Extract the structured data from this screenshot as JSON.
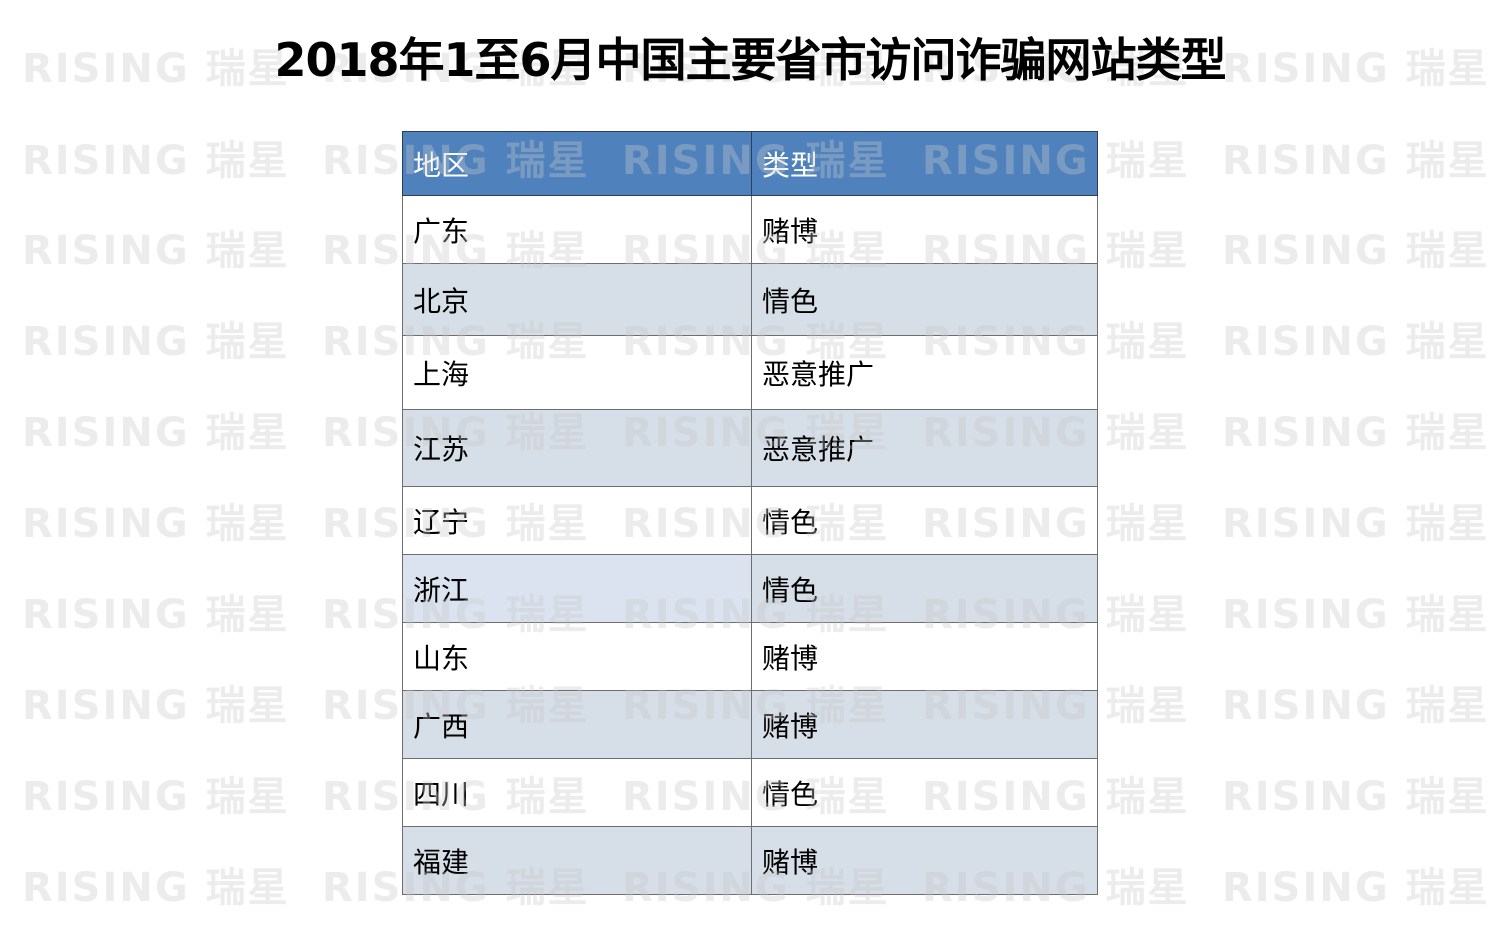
{
  "title": "2018年1至6月中国主要省市访问诈骗网站类型",
  "watermark": "RISING 瑞星",
  "table": {
    "headers": [
      "地区",
      "类型"
    ],
    "rows": [
      [
        "广东",
        "赌博"
      ],
      [
        "北京",
        "情色"
      ],
      [
        "上海",
        "恶意推广"
      ],
      [
        "江苏",
        "恶意推广"
      ],
      [
        "辽宁",
        "情色"
      ],
      [
        "浙江",
        "情色"
      ],
      [
        "山东",
        "赌博"
      ],
      [
        "广西",
        "赌博"
      ],
      [
        "四川",
        "情色"
      ],
      [
        "福建",
        "赌博"
      ]
    ]
  },
  "colors": {
    "header": "#4f81bd",
    "band": "#d6dee8"
  }
}
